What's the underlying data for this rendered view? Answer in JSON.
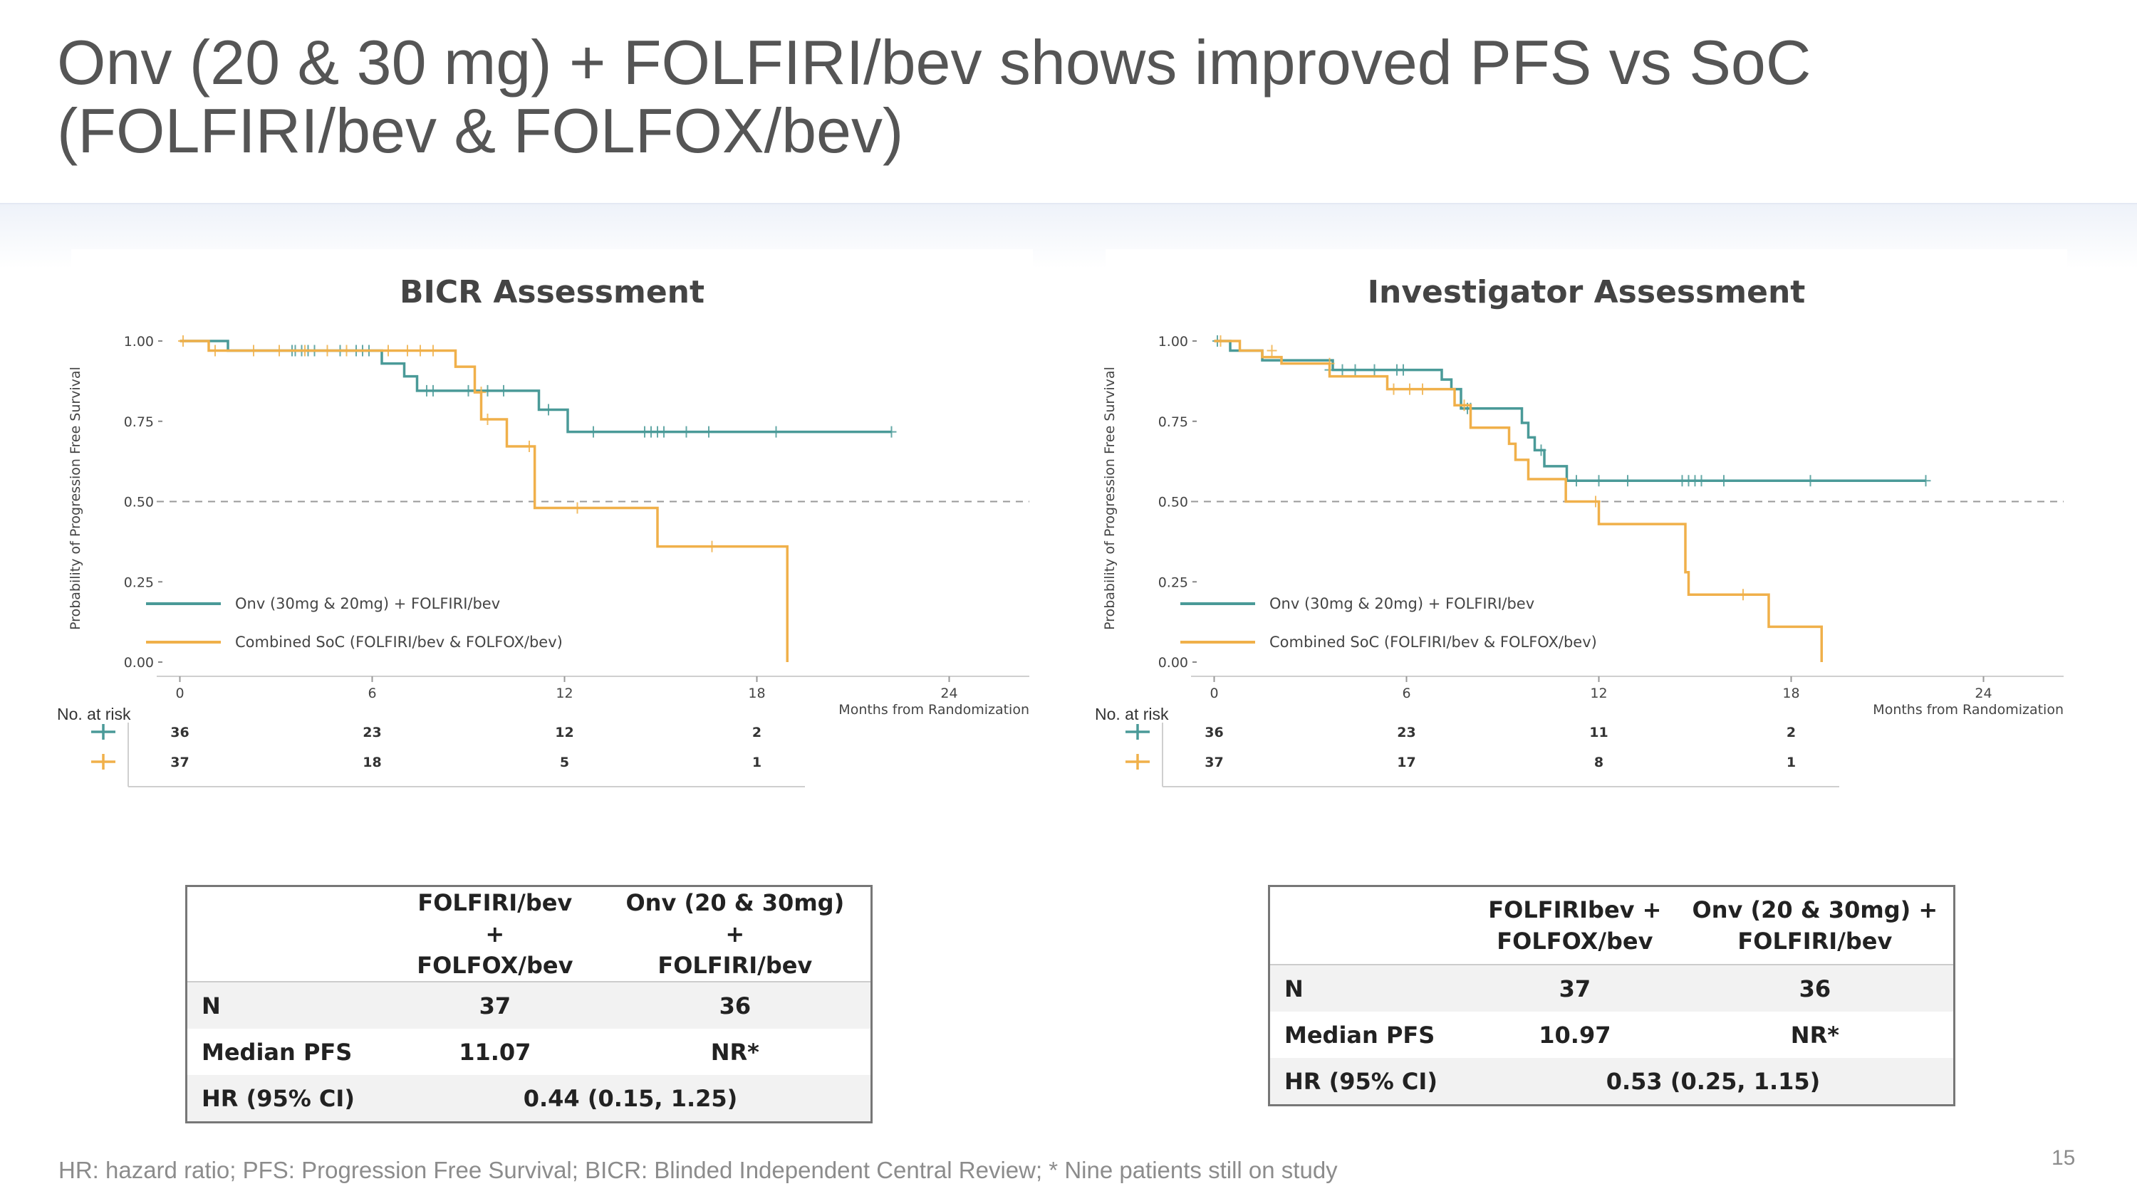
{
  "slide": {
    "title_line1": "Onv (20 & 30 mg) + FOLFIRI/bev shows improved PFS vs SoC",
    "title_line2": "(FOLFIRI/bev & FOLFOX/bev)",
    "footnote": "HR: hazard ratio; PFS: Progression Free Survival; BICR: Blinded Independent Central Review; * Nine patients still on study",
    "page_number": "15"
  },
  "colors": {
    "teal": "#4a9a98",
    "orange": "#f0b04a",
    "ref_line": "#999999"
  },
  "chart_data": [
    {
      "type": "line",
      "title": "BICR Assessment",
      "xlabel": "Months from Randomization",
      "ylabel": "Probability of Progression Free Survival",
      "xticks": [
        0,
        6,
        12,
        18,
        24
      ],
      "yticks": [
        "0.00",
        "0.25",
        "0.50",
        "0.75",
        "1.00"
      ],
      "xlim": [
        -0.5,
        26.5
      ],
      "ylim": [
        0,
        1.02
      ],
      "reference_line": 0.5,
      "legend_position": "lower-left",
      "series": [
        {
          "name": "Onv (30mg & 20mg) + FOLFIRI/bev",
          "color": "teal",
          "steps": [
            [
              0,
              1.0
            ],
            [
              1.5,
              0.97
            ],
            [
              6.3,
              0.93
            ],
            [
              7.0,
              0.89
            ],
            [
              7.4,
              0.845
            ],
            [
              11.2,
              0.786
            ],
            [
              12.1,
              0.717
            ],
            [
              22.2,
              0.717
            ]
          ],
          "censors": [
            [
              3.5,
              0.97
            ],
            [
              3.6,
              0.97
            ],
            [
              3.8,
              0.97
            ],
            [
              4.0,
              0.97
            ],
            [
              4.2,
              0.97
            ],
            [
              5.0,
              0.97
            ],
            [
              5.5,
              0.97
            ],
            [
              5.7,
              0.97
            ],
            [
              5.9,
              0.97
            ],
            [
              7.7,
              0.845
            ],
            [
              7.9,
              0.845
            ],
            [
              9.0,
              0.845
            ],
            [
              9.6,
              0.845
            ],
            [
              10.1,
              0.845
            ],
            [
              11.5,
              0.786
            ],
            [
              12.9,
              0.717
            ],
            [
              14.5,
              0.717
            ],
            [
              14.7,
              0.717
            ],
            [
              14.9,
              0.717
            ],
            [
              15.1,
              0.717
            ],
            [
              15.8,
              0.717
            ],
            [
              16.5,
              0.717
            ],
            [
              18.6,
              0.717
            ],
            [
              22.2,
              0.717
            ]
          ]
        },
        {
          "name": "Combined SoC (FOLFIRI/bev & FOLFOX/bev)",
          "color": "orange",
          "steps": [
            [
              0,
              1.0
            ],
            [
              0.9,
              0.97
            ],
            [
              8.6,
              0.92
            ],
            [
              9.2,
              0.84
            ],
            [
              9.4,
              0.756
            ],
            [
              10.2,
              0.672
            ],
            [
              11.0,
              0.672
            ],
            [
              11.07,
              0.48
            ],
            [
              14.8,
              0.48
            ],
            [
              14.9,
              0.36
            ],
            [
              18.9,
              0.36
            ],
            [
              18.95,
              0.0
            ]
          ],
          "censors": [
            [
              0.1,
              1.0
            ],
            [
              1.1,
              0.97
            ],
            [
              2.3,
              0.97
            ],
            [
              3.1,
              0.97
            ],
            [
              3.9,
              0.97
            ],
            [
              4.6,
              0.97
            ],
            [
              5.2,
              0.97
            ],
            [
              6.5,
              0.97
            ],
            [
              7.1,
              0.97
            ],
            [
              7.5,
              0.97
            ],
            [
              7.9,
              0.97
            ],
            [
              9.4,
              0.84
            ],
            [
              9.6,
              0.756
            ],
            [
              10.9,
              0.672
            ],
            [
              12.4,
              0.48
            ],
            [
              16.6,
              0.36
            ]
          ]
        }
      ],
      "at_risk": {
        "label": "No. at risk",
        "times": [
          0,
          6,
          12,
          18
        ],
        "rows": [
          [
            36,
            23,
            12,
            2
          ],
          [
            37,
            18,
            5,
            1
          ]
        ]
      }
    },
    {
      "type": "line",
      "title": "Investigator Assessment",
      "xlabel": "Months from Randomization",
      "ylabel": "Probability of Progression Free Survival",
      "xticks": [
        0,
        6,
        12,
        18,
        24
      ],
      "yticks": [
        "0.00",
        "0.25",
        "0.50",
        "0.75",
        "1.00"
      ],
      "xlim": [
        -0.5,
        26.5
      ],
      "ylim": [
        0,
        1.02
      ],
      "reference_line": 0.5,
      "legend_position": "lower-left",
      "series": [
        {
          "name": "Onv (30mg & 20mg) + FOLFIRI/bev",
          "color": "teal",
          "steps": [
            [
              0,
              1.0
            ],
            [
              0.5,
              0.97
            ],
            [
              1.5,
              0.94
            ],
            [
              3.7,
              0.91
            ],
            [
              4.5,
              0.91
            ],
            [
              7.1,
              0.88
            ],
            [
              7.4,
              0.85
            ],
            [
              7.7,
              0.79
            ],
            [
              9.6,
              0.745
            ],
            [
              9.8,
              0.7
            ],
            [
              10.0,
              0.66
            ],
            [
              10.3,
              0.61
            ],
            [
              11.0,
              0.565
            ],
            [
              22.2,
              0.565
            ]
          ],
          "censors": [
            [
              0.1,
              1.0
            ],
            [
              3.6,
              0.91
            ],
            [
              4.0,
              0.91
            ],
            [
              4.4,
              0.91
            ],
            [
              5.0,
              0.91
            ],
            [
              5.7,
              0.91
            ],
            [
              5.9,
              0.91
            ],
            [
              7.9,
              0.79
            ],
            [
              8.0,
              0.79
            ],
            [
              10.2,
              0.66
            ],
            [
              11.3,
              0.565
            ],
            [
              12.0,
              0.565
            ],
            [
              12.9,
              0.565
            ],
            [
              14.6,
              0.565
            ],
            [
              14.8,
              0.565
            ],
            [
              15.0,
              0.565
            ],
            [
              15.2,
              0.565
            ],
            [
              15.9,
              0.565
            ],
            [
              18.6,
              0.565
            ],
            [
              22.2,
              0.565
            ]
          ]
        },
        {
          "name": "Combined SoC (FOLFIRI/bev & FOLFOX/bev)",
          "color": "orange",
          "steps": [
            [
              0,
              1.0
            ],
            [
              0.8,
              0.97
            ],
            [
              1.5,
              0.95
            ],
            [
              2.1,
              0.93
            ],
            [
              3.6,
              0.89
            ],
            [
              5.4,
              0.85
            ],
            [
              7.5,
              0.8
            ],
            [
              8.0,
              0.73
            ],
            [
              9.2,
              0.68
            ],
            [
              9.4,
              0.63
            ],
            [
              9.8,
              0.57
            ],
            [
              10.97,
              0.5
            ],
            [
              12.0,
              0.43
            ],
            [
              14.6,
              0.43
            ],
            [
              14.7,
              0.28
            ],
            [
              14.8,
              0.21
            ],
            [
              17.2,
              0.21
            ],
            [
              17.3,
              0.11
            ],
            [
              18.9,
              0.11
            ],
            [
              18.95,
              0.0
            ]
          ],
          "censors": [
            [
              0.2,
              1.0
            ],
            [
              1.8,
              0.97
            ],
            [
              3.6,
              0.93
            ],
            [
              5.6,
              0.85
            ],
            [
              6.1,
              0.85
            ],
            [
              6.5,
              0.85
            ],
            [
              7.8,
              0.8
            ],
            [
              11.9,
              0.5
            ],
            [
              16.5,
              0.21
            ]
          ]
        }
      ],
      "at_risk": {
        "label": "No. at risk",
        "times": [
          0,
          6,
          12,
          18
        ],
        "rows": [
          [
            36,
            23,
            11,
            2
          ],
          [
            37,
            17,
            8,
            1
          ]
        ]
      }
    }
  ],
  "tables": [
    {
      "headers": [
        "",
        "FOLFIRI/bev + FOLFOX/bev",
        "Onv (20 & 30mg) + FOLFIRI/bev"
      ],
      "header_lines": [
        [
          "FOLFIRI/bev +",
          "FOLFOX/bev"
        ],
        [
          "Onv (20 & 30mg) +",
          "FOLFIRI/bev"
        ]
      ],
      "n_label": "N",
      "n_values": [
        "37",
        "36"
      ],
      "median_label": "Median PFS",
      "median_values": [
        "11.07",
        "NR*"
      ],
      "hr_label": "HR (95% CI)",
      "hr_value": "0.44 (0.15, 1.25)"
    },
    {
      "headers": [
        "",
        "FOLFIRIbev + FOLFOX/bev",
        "Onv (20 & 30mg) + FOLFIRI/bev"
      ],
      "header_lines": [
        [
          "FOLFIRIbev +",
          "FOLFOX/bev"
        ],
        [
          "Onv (20 & 30mg) +",
          "FOLFIRI/bev"
        ]
      ],
      "n_label": "N",
      "n_values": [
        "37",
        "36"
      ],
      "median_label": "Median PFS",
      "median_values": [
        "10.97",
        "NR*"
      ],
      "hr_label": "HR (95% CI)",
      "hr_value": "0.53 (0.25, 1.15)"
    }
  ]
}
